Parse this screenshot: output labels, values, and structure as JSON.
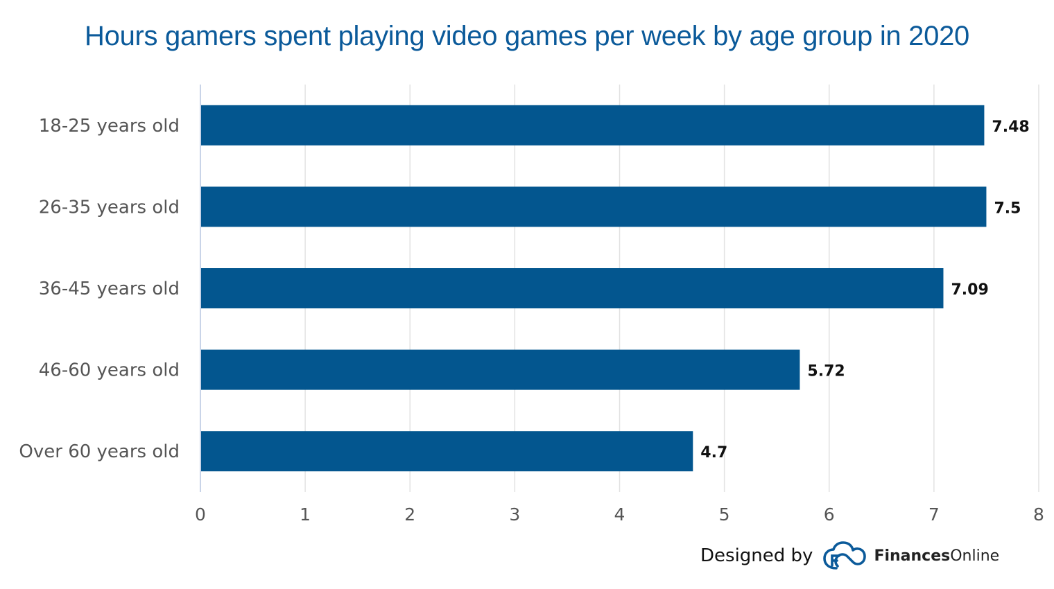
{
  "chart_data": {
    "type": "bar",
    "orientation": "horizontal",
    "title": "Hours gamers spent playing video games per week by age group in 2020",
    "categories": [
      "18-25 years old",
      "26-35 years old",
      "36-45 years old",
      "46-60 years old",
      "Over 60 years old"
    ],
    "values": [
      7.48,
      7.5,
      7.09,
      5.72,
      4.7
    ],
    "data_labels": [
      "7.48",
      "7.5",
      "7.09",
      "5.72",
      "4.7"
    ],
    "xlim": [
      0,
      8
    ],
    "x_ticks": [
      "0",
      "1",
      "2",
      "3",
      "4",
      "5",
      "6",
      "7",
      "8"
    ],
    "grid": true,
    "legend": "none",
    "bar_color": "#03568f"
  },
  "footer": {
    "designed_by": "Designed by",
    "brand_strong": "Finances",
    "brand_light": "Online",
    "logo_icon": "financesonline-cloud-icon",
    "logo_color": "#0b5a9a"
  }
}
